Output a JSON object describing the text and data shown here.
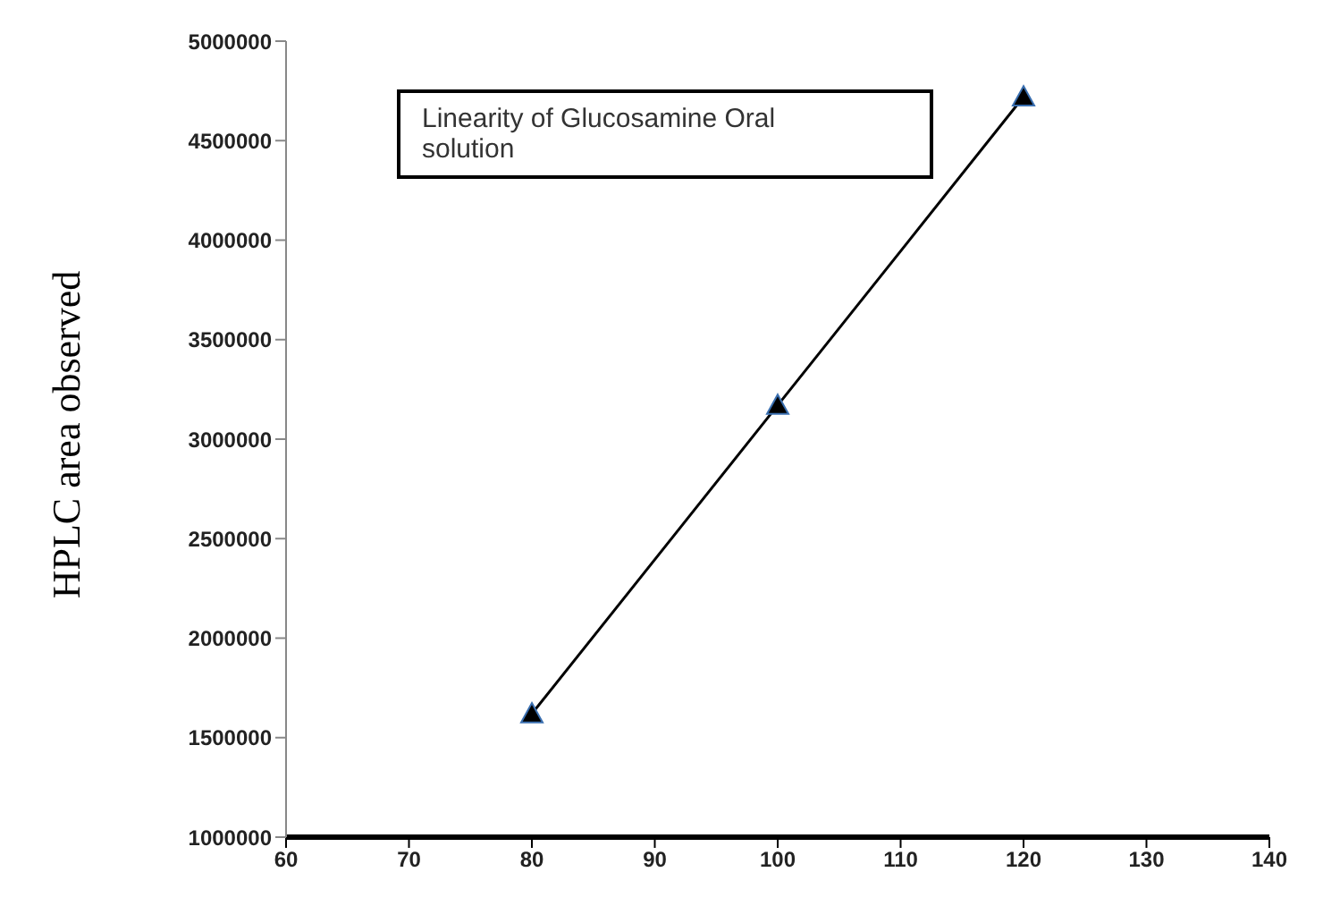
{
  "chart_data": {
    "type": "line",
    "title": "Linearity of Glucosamine Oral solution",
    "ylabel": "HPLC area observed",
    "x": [
      80,
      100,
      120
    ],
    "series": [
      {
        "color": "#000000",
        "values": [
          1620000,
          3170000,
          4720000
        ]
      }
    ],
    "marker": "triangle",
    "line_style": "solid",
    "xlim": [
      60,
      140
    ],
    "xticks": [
      60,
      70,
      80,
      90,
      100,
      110,
      120,
      130,
      140
    ],
    "ylim": [
      1000000,
      5000000
    ],
    "yticks": [
      1000000,
      1500000,
      2000000,
      2500000,
      3000000,
      3500000,
      4000000,
      4500000,
      5000000
    ]
  }
}
